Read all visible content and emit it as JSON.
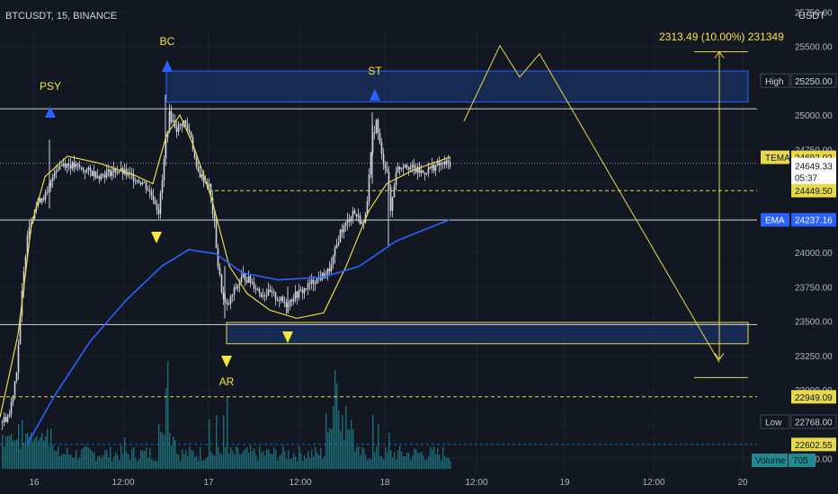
{
  "header": {
    "symbol_line": "BTCUSDT, 15, BINANCE",
    "currency": "USDT"
  },
  "colors": {
    "background": "#131722",
    "candle": "#d1d4dc",
    "tema": "#e6d94a",
    "ema": "#2962ff",
    "wyckoff_label": "#f5e642",
    "zone_fill": "#1c3a7a",
    "zone_stroke": "#2962ff",
    "volume": "#1f8a90",
    "white_line": "#d1d4dc",
    "axis_text": "#b2b5be"
  },
  "chart_data": {
    "type": "candlestick",
    "y_range": [
      22500,
      25750
    ],
    "x_tick_labels": [
      "16",
      "12:00",
      "17",
      "12:00",
      "18",
      "12:00",
      "19",
      "12:00",
      "20"
    ],
    "y_tick_labels": [
      "25750.00",
      "25500.00",
      "25250.00",
      "25000.00",
      "24750.00",
      "24500.00",
      "24250.00",
      "24000.00",
      "23750.00",
      "23500.00",
      "23250.00",
      "23000.00",
      "22750.00",
      "22500.00"
    ],
    "y_tick_values": [
      25750,
      25500,
      25250,
      25000,
      24750,
      24500,
      24250,
      24000,
      23750,
      23500,
      23250,
      23000,
      22750,
      22500
    ],
    "price_labels": [
      {
        "key": "high",
        "name": "High",
        "value": "25250.00",
        "price": 25250
      },
      {
        "key": "tema",
        "name": "TEMA",
        "value": "24692.02",
        "price": 24692
      },
      {
        "key": "last",
        "name": "",
        "value": "24649.33",
        "sub": "05:37",
        "price": 24649
      },
      {
        "key": "dash1",
        "name": "",
        "value": "24449.50",
        "price": 24449.5
      },
      {
        "key": "ema",
        "name": "EMA",
        "value": "24237.16",
        "price": 24237
      },
      {
        "key": "dash2",
        "name": "",
        "value": "22949.09",
        "price": 22949
      },
      {
        "key": "low",
        "name": "Low",
        "value": "22768.00",
        "price": 22768
      },
      {
        "key": "dash3",
        "name": "",
        "value": "22602.55",
        "price": 22602.55
      }
    ],
    "volume_label": {
      "name": "Volume",
      "value": "705"
    },
    "measure_text": "2313.49 (10.00%) 231349",
    "wyckoff_labels": [
      {
        "text": "PSY",
        "marker": "up"
      },
      {
        "text": "BC",
        "marker": "up"
      },
      {
        "text": "ST",
        "marker": "up"
      },
      {
        "text": "AR",
        "marker": "down"
      }
    ],
    "horizontal_levels": [
      25045,
      24235,
      23475
    ],
    "dashed_levels": [
      24449.5,
      22949.09
    ],
    "zones": [
      {
        "name": "resistance-zone",
        "top": 25320,
        "bottom": 25095
      },
      {
        "name": "support-zone",
        "top": 23490,
        "bottom": 23335
      }
    ],
    "projection_path": [
      24955,
      25505,
      25275,
      25445,
      23200
    ]
  }
}
